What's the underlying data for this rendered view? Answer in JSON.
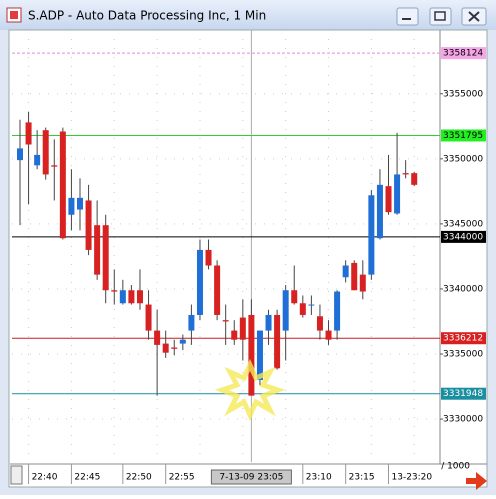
{
  "chart_data": {
    "type": "candlestick",
    "title": "S.ADP - Auto Data Processing Inc, 1 Min",
    "categories": [
      null,
      "22:40",
      null,
      null,
      null,
      null,
      "22:45",
      null,
      null,
      null,
      null,
      null,
      "22:50",
      null,
      null,
      null,
      null,
      "22:55",
      null,
      null,
      null,
      null,
      null,
      null,
      null,
      null,
      null,
      "7-13-09 23:05",
      null,
      null,
      null,
      null,
      null,
      "23:10",
      null,
      null,
      null,
      null,
      "23:15",
      null,
      null,
      null,
      null,
      "13-23:20",
      null,
      null,
      null
    ],
    "crosshair_at": 27,
    "open": [
      3349900,
      3352800,
      3349500,
      3352200,
      3349500,
      3352100,
      3345700,
      3346100,
      3346800,
      3344900,
      3344900,
      3339900,
      3338900,
      3339900,
      3339900,
      3338800,
      3336800,
      3335800,
      3335500,
      3335800,
      3336800,
      3338000,
      3343000,
      3341800,
      3337600,
      3336800,
      3337800,
      3338000,
      3333000,
      3336800,
      3338000,
      3336800,
      3339900,
      3338900,
      3338800,
      3337900,
      3336800,
      3336800,
      3340900,
      3342000,
      3341100,
      3341100,
      3343900,
      3347900,
      3345800,
      3348900,
      3348900
    ],
    "high": [
      3353000,
      3353600,
      3352200,
      3352400,
      3351500,
      3352400,
      3349200,
      3348500,
      3348000,
      3346800,
      3345700,
      3341500,
      3340700,
      3340300,
      3341500,
      3339900,
      3338400,
      3336800,
      3336100,
      3336500,
      3338800,
      3343800,
      3343800,
      3342200,
      3338800,
      3337600,
      3339200,
      3339200,
      3336800,
      3338400,
      3338400,
      3340300,
      3341800,
      3339500,
      3339500,
      3338800,
      3337600,
      3339900,
      3342200,
      3342200,
      3342200,
      3347600,
      3349200,
      3350300,
      3352000,
      3349900,
      3349000
    ],
    "low": [
      3344900,
      3346500,
      3349200,
      3348400,
      3346800,
      3343800,
      3344500,
      3344500,
      3342600,
      3340700,
      3338900,
      3338800,
      3338800,
      3338800,
      3338400,
      3336100,
      3331800,
      3334700,
      3334900,
      3335300,
      3335700,
      3337600,
      3341500,
      3337600,
      3335700,
      3335700,
      3334500,
      3331800,
      3332600,
      3335700,
      3333800,
      3334500,
      3338800,
      3337800,
      3338000,
      3336100,
      3335700,
      3336100,
      3340500,
      3339900,
      3339200,
      3340700,
      3343800,
      3345700,
      3345700,
      3348500,
      3347900
    ],
    "close": [
      3350800,
      3351100,
      3350300,
      3348800,
      3349400,
      3343900,
      3347000,
      3347000,
      3343000,
      3341100,
      3339900,
      3339800,
      3339900,
      3338900,
      3338900,
      3336800,
      3335700,
      3335100,
      3335400,
      3336100,
      3338000,
      3343000,
      3341800,
      3338000,
      3337500,
      3336100,
      3336100,
      3331800,
      3336800,
      3338000,
      3333900,
      3339900,
      3338900,
      3338000,
      3338800,
      3336800,
      3336100,
      3339800,
      3341800,
      3339900,
      3339800,
      3347200,
      3348000,
      3345900,
      3348800,
      3348800,
      3348000
    ],
    "up_color": "#1f6fd6",
    "down_color": "#d82222",
    "ylim": [
      3326700,
      3359900
    ],
    "yticks": [
      3330000,
      3335000,
      3340000,
      3345000,
      3350000,
      3355000
    ],
    "grid": true,
    "levels": [
      {
        "value": 3358124,
        "color": "#e58ad9",
        "label_bg": "#f4a6e6",
        "label_fg": "#000000",
        "dashed": true
      },
      {
        "value": 3351795,
        "color": "#33cc33",
        "label_bg": "#22ee22",
        "label_fg": "#000000",
        "dashed": false
      },
      {
        "value": 3344000,
        "color": "#000000",
        "label_bg": "#000000",
        "label_fg": "#ffffff",
        "dashed": false
      },
      {
        "value": 3336212,
        "color": "#c02020",
        "label_bg": "#d82020",
        "label_fg": "#ffffff",
        "dashed": false
      },
      {
        "value": 3331948,
        "color": "#1a8fa0",
        "label_bg": "#1a8fa0",
        "label_fg": "#ffffff",
        "dashed": false
      }
    ],
    "scale_label": "/ 1000"
  }
}
